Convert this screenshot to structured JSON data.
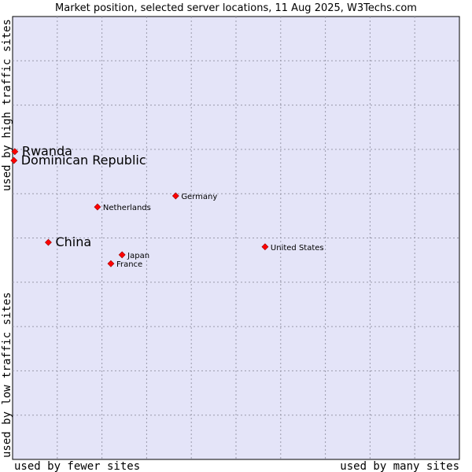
{
  "chart_data": {
    "type": "scatter",
    "title": "Market position, selected server locations, 11 Aug 2025, W3Techs.com",
    "xlabel_left": "used by fewer sites",
    "xlabel_right": "used by many sites",
    "ylabel_top": "used by high traffic sites",
    "ylabel_bottom": "used by low traffic sites",
    "xlim": [
      0,
      10
    ],
    "ylim": [
      0,
      10
    ],
    "grid": true,
    "colors": {
      "plot_bg": "#e4e4f8",
      "frame": "#000000",
      "grid": "#9999aa",
      "point": "#ff0000",
      "point_edge": "#990000"
    },
    "points": [
      {
        "label": "Rwanda",
        "x": 0.05,
        "y": 6.95,
        "size": "large"
      },
      {
        "label": "Dominican Republic",
        "x": 0.03,
        "y": 6.75,
        "size": "large"
      },
      {
        "label": "Germany",
        "x": 3.65,
        "y": 5.95,
        "size": "small"
      },
      {
        "label": "Netherlands",
        "x": 1.9,
        "y": 5.7,
        "size": "small"
      },
      {
        "label": "China",
        "x": 0.8,
        "y": 4.9,
        "size": "large"
      },
      {
        "label": "United States",
        "x": 5.65,
        "y": 4.8,
        "size": "small"
      },
      {
        "label": "Japan",
        "x": 2.45,
        "y": 4.62,
        "size": "small"
      },
      {
        "label": "France",
        "x": 2.2,
        "y": 4.42,
        "size": "small"
      }
    ]
  }
}
